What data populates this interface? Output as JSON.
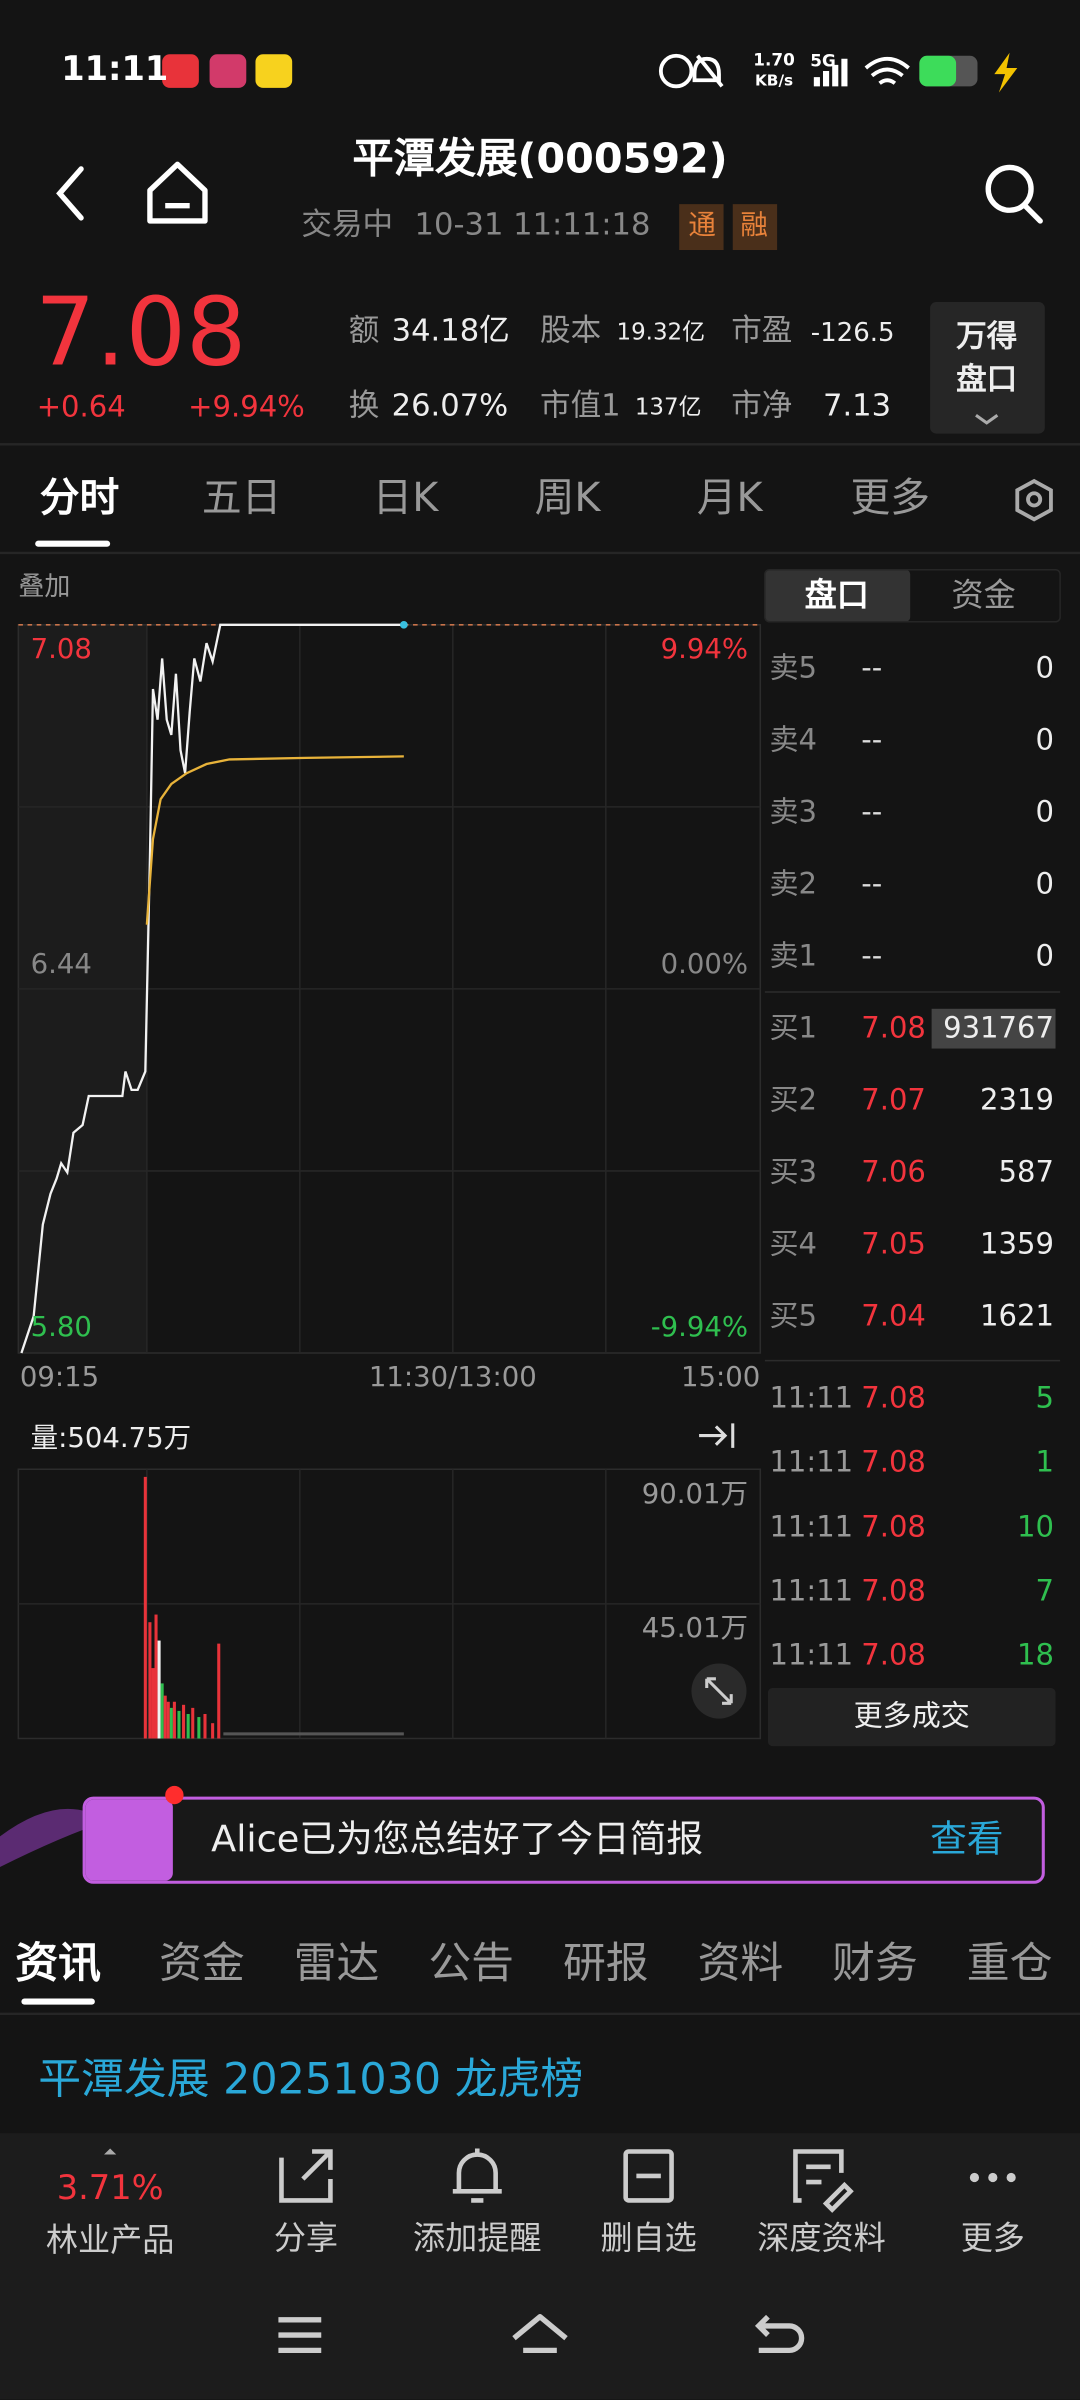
{
  "status_bar": {
    "time": "11:11",
    "network_speed": "1.70",
    "network_speed_unit": "KB/s",
    "network": "5G"
  },
  "header": {
    "title": "平潭发展(000592)",
    "status": "交易中",
    "datetime": "10-31 11:11:18",
    "badges": [
      "通",
      "融"
    ]
  },
  "quote": {
    "price": "7.08",
    "change": "+0.64",
    "change_pct": "+9.94%",
    "stats": [
      {
        "label": "额",
        "value": "34.18亿"
      },
      {
        "label": "股本",
        "value": "19.32亿"
      },
      {
        "label": "市盈",
        "value": "-126.5"
      },
      {
        "label": "换",
        "value": "26.07%"
      },
      {
        "label": "市值1",
        "value": "137亿"
      },
      {
        "label": "市净",
        "value": "7.13"
      }
    ],
    "panel_button": [
      "万得",
      "盘口"
    ]
  },
  "tabs": [
    "分时",
    "五日",
    "日K",
    "周K",
    "月K",
    "更多"
  ],
  "chart": {
    "overlay_label": "叠加",
    "price_labels": [
      "7.08",
      "6.44",
      "5.80"
    ],
    "pct_labels": [
      "9.94%",
      "0.00%",
      "-9.94%"
    ],
    "time_labels": [
      "09:15",
      "11:30/13:00",
      "15:00"
    ],
    "volume_label": "量:504.75万",
    "volume_ticks": [
      "90.01万",
      "45.01万"
    ]
  },
  "order_book": {
    "tabs": [
      "盘口",
      "资金"
    ],
    "asks": [
      {
        "label": "卖5",
        "price": "--",
        "volume": "0"
      },
      {
        "label": "卖4",
        "price": "--",
        "volume": "0"
      },
      {
        "label": "卖3",
        "price": "--",
        "volume": "0"
      },
      {
        "label": "卖2",
        "price": "--",
        "volume": "0"
      },
      {
        "label": "卖1",
        "price": "--",
        "volume": "0"
      }
    ],
    "bids": [
      {
        "label": "买1",
        "price": "7.08",
        "volume": "931767"
      },
      {
        "label": "买2",
        "price": "7.07",
        "volume": "2319"
      },
      {
        "label": "买3",
        "price": "7.06",
        "volume": "587"
      },
      {
        "label": "买4",
        "price": "7.05",
        "volume": "1359"
      },
      {
        "label": "买5",
        "price": "7.04",
        "volume": "1621"
      }
    ]
  },
  "trades": [
    {
      "time": "11:11",
      "price": "7.08",
      "volume": "5"
    },
    {
      "time": "11:11",
      "price": "7.08",
      "volume": "1"
    },
    {
      "time": "11:11",
      "price": "7.08",
      "volume": "10"
    },
    {
      "time": "11:11",
      "price": "7.08",
      "volume": "7"
    },
    {
      "time": "11:11",
      "price": "7.08",
      "volume": "18"
    }
  ],
  "more_trades": "更多成交",
  "banner": {
    "text": "Alice已为您总结好了今日简报",
    "action": "查看"
  },
  "news_tabs": [
    "资讯",
    "资金",
    "雷达",
    "公告",
    "研报",
    "资料",
    "财务",
    "重仓"
  ],
  "news": {
    "headline": "平潭发展 20251030 龙虎榜"
  },
  "bottom_bar": {
    "sector_change": "3.71%",
    "sector_name": "林业产品",
    "actions": [
      "分享",
      "添加提醒",
      "删自选",
      "深度资料",
      "更多"
    ]
  }
}
